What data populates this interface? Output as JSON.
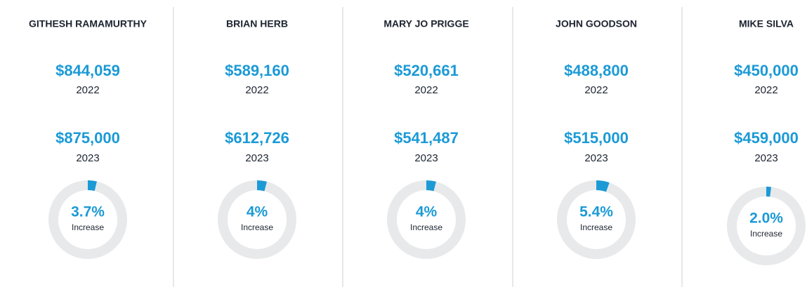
{
  "columns": [
    {
      "name": "GITHESH RAMAMURTHY",
      "amount_2022": "$844,059",
      "year_2022": "2022",
      "amount_2023": "$875,000",
      "year_2023": "2023",
      "gauge": {
        "value": 3.7,
        "label": "3.7%",
        "caption": "Increase"
      }
    },
    {
      "name": "BRIAN HERB",
      "amount_2022": "$589,160",
      "year_2022": "2022",
      "amount_2023": "$612,726",
      "year_2023": "2023",
      "gauge": {
        "value": 4,
        "label": "4%",
        "caption": "Increase"
      }
    },
    {
      "name": "MARY JO PRIGGE",
      "amount_2022": "$520,661",
      "year_2022": "2022",
      "amount_2023": "$541,487",
      "year_2023": "2023",
      "gauge": {
        "value": 4,
        "label": "4%",
        "caption": "Increase"
      }
    },
    {
      "name": "JOHN GOODSON",
      "amount_2022": "$488,800",
      "year_2022": "2022",
      "amount_2023": "$515,000",
      "year_2023": "2023",
      "gauge": {
        "value": 5.4,
        "label": "5.4%",
        "caption": "Increase"
      }
    },
    {
      "name": "MIKE SILVA",
      "amount_2022": "$450,000",
      "year_2022": "2022",
      "amount_2023": "$459,000",
      "year_2023": "2023",
      "gauge": {
        "value": 2.0,
        "label": "2.0%",
        "caption": "Increase"
      }
    }
  ]
}
